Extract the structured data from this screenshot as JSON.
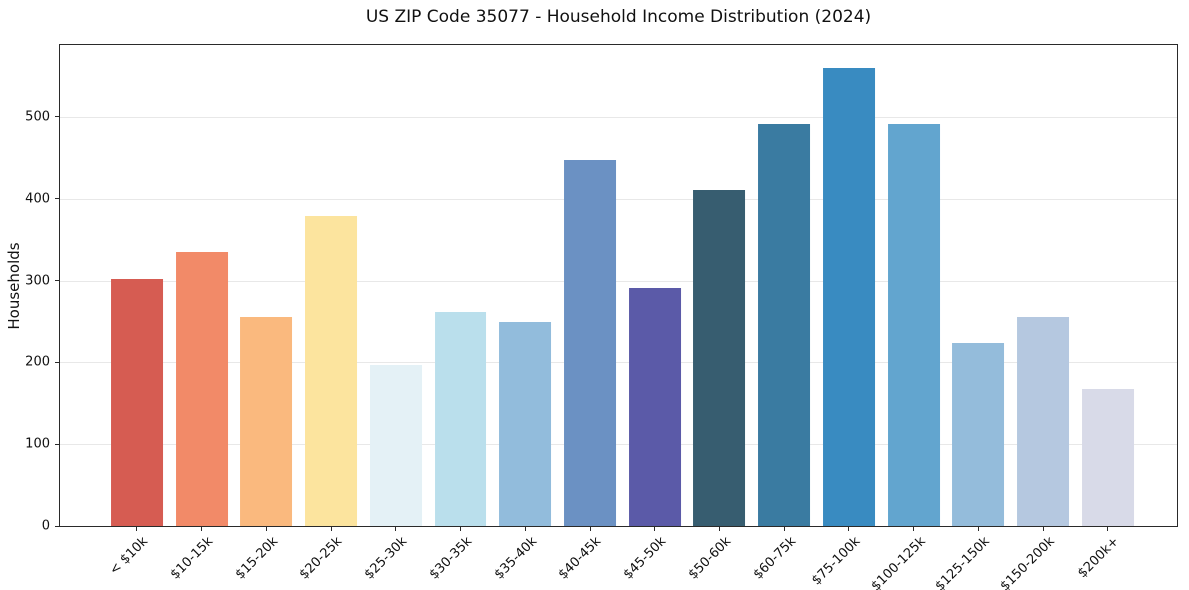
{
  "chart_data": {
    "type": "bar",
    "title": "US ZIP Code 35077 - Household Income Distribution (2024)",
    "xlabel": "",
    "ylabel": "Households",
    "categories": [
      "< $10k",
      "$10-15k",
      "$15-20k",
      "$20-25k",
      "$25-30k",
      "$30-35k",
      "$35-40k",
      "$40-45k",
      "$45-50k",
      "$50-60k",
      "$60-75k",
      "$75-100k",
      "$100-125k",
      "$125-150k",
      "$150-200k",
      "$200k+"
    ],
    "values": [
      302,
      335,
      255,
      379,
      197,
      262,
      249,
      448,
      291,
      411,
      492,
      560,
      492,
      224,
      256,
      167
    ],
    "bar_colors": [
      "#d65c52",
      "#f28a68",
      "#fab97e",
      "#fce49e",
      "#e4f1f6",
      "#badfec",
      "#92bcdc",
      "#6b91c3",
      "#5b5aa8",
      "#375d70",
      "#3a7ba1",
      "#398bc1",
      "#62a5cf",
      "#94bcdb",
      "#b5c8e0",
      "#d8dae8"
    ],
    "yticks": [
      0,
      100,
      200,
      300,
      400,
      500
    ],
    "ylim": [
      0,
      588
    ],
    "grid": "horizontal",
    "grid_color": "#e8e8e8",
    "spine_color": "#2a2a2a",
    "text_color": "#111111",
    "background": "#ffffff",
    "legend": "none",
    "xtick_rotation": 45
  }
}
